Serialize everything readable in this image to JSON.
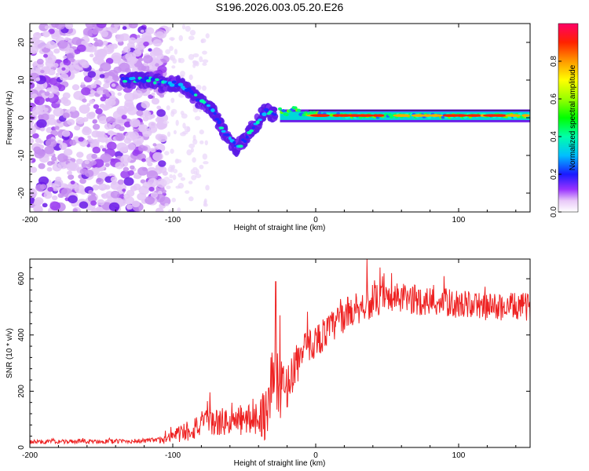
{
  "chart_data": [
    {
      "type": "heatmap",
      "title": "S196.2026.003.05.20.E26",
      "xlabel": "Height of straight line (km)",
      "ylabel": "Frequency (Hz)",
      "xlim": [
        -200,
        150
      ],
      "ylim": [
        -25,
        25
      ],
      "xticks": [
        -200,
        -100,
        0,
        100
      ],
      "xtick_labels": [
        "-200",
        "-100",
        "0",
        "100"
      ],
      "yticks": [
        -20,
        -10,
        0,
        10,
        20
      ],
      "ytick_labels": [
        "-20",
        "-10",
        "0",
        "10",
        "20"
      ],
      "colorbar": {
        "label": "Normalized spectral amplitude",
        "range": [
          0,
          1
        ],
        "ticks": [
          0.0,
          0.2,
          0.4,
          0.6,
          0.8
        ],
        "tick_labels": [
          "0.0",
          "0.2",
          "0.4",
          "0.6",
          "0.8"
        ]
      },
      "ridge": {
        "x": [
          -135,
          -125,
          -115,
          -105,
          -95,
          -88,
          -80,
          -72,
          -65,
          -60,
          -55,
          -50,
          -45,
          -40,
          -35,
          -30,
          -25,
          -20,
          -15,
          -10,
          -5,
          0,
          10,
          20,
          40,
          60,
          80,
          100,
          120,
          150
        ],
        "y": [
          10,
          10,
          10,
          9,
          9,
          7,
          4,
          2,
          -3,
          -6,
          -8,
          -6,
          -3,
          -1,
          2,
          1,
          2,
          1,
          3,
          1,
          1,
          1,
          1,
          0.5,
          0.5,
          0.5,
          0.5,
          0.5,
          0.5,
          0.5
        ]
      },
      "noise_region_x": [
        -200,
        -105
      ],
      "line_band_x": [
        -25,
        150
      ]
    },
    {
      "type": "line",
      "xlabel": "Height of straight line (km)",
      "ylabel": "SNR (10 * v/v)",
      "xlim": [
        -200,
        150
      ],
      "ylim": [
        0,
        670
      ],
      "xticks": [
        -200,
        -100,
        0,
        100
      ],
      "xtick_labels": [
        "-200",
        "-100",
        "0",
        "100"
      ],
      "yticks": [
        0,
        200,
        400,
        600
      ],
      "ytick_labels": [
        "0",
        "200",
        "400",
        "600"
      ],
      "series": [
        {
          "name": "SNR",
          "color": "#ee2222",
          "trend_x": [
            -200,
            -130,
            -110,
            -100,
            -90,
            -80,
            -70,
            -60,
            -50,
            -40,
            -35,
            -30,
            -25,
            -20,
            -15,
            -10,
            -5,
            0,
            10,
            20,
            30,
            40,
            60,
            80,
            100,
            120,
            150
          ],
          "trend_y": [
            20,
            22,
            25,
            40,
            60,
            80,
            90,
            90,
            95,
            110,
            120,
            250,
            200,
            220,
            280,
            330,
            360,
            380,
            420,
            470,
            500,
            520,
            530,
            520,
            510,
            500,
            500
          ],
          "noise_amplitude": [
            8,
            8,
            10,
            25,
            40,
            50,
            50,
            50,
            55,
            60,
            100,
            150,
            100,
            80,
            80,
            70,
            60,
            60,
            60,
            60,
            60,
            60,
            55,
            55,
            50,
            50,
            50
          ],
          "spikes": [
            {
              "x": -28,
              "y": 590
            },
            {
              "x": -25,
              "y": 470
            },
            {
              "x": 36,
              "y": 670
            },
            {
              "x": 45,
              "y": 640
            },
            {
              "x": 53,
              "y": 620
            }
          ]
        }
      ]
    }
  ]
}
